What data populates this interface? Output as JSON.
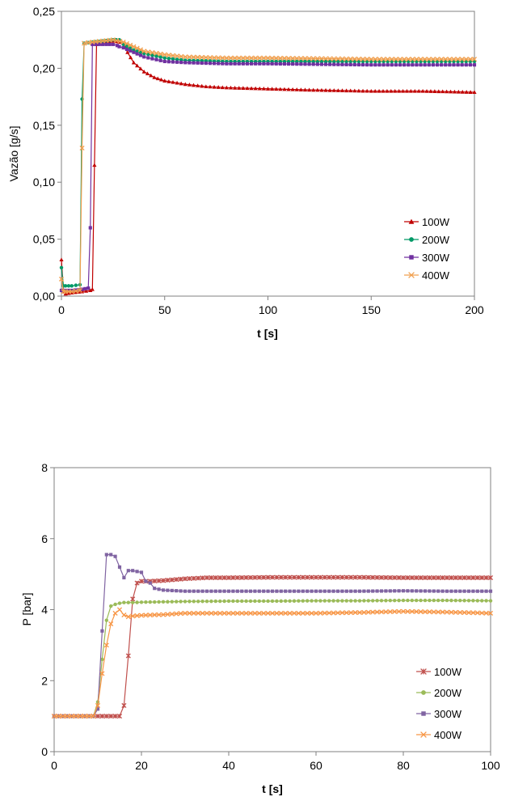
{
  "chart_data": [
    {
      "type": "scatter",
      "xlabel": "t [s]",
      "ylabel": "Vazão [g/s]",
      "xlim": [
        0,
        200
      ],
      "ylim": [
        0,
        0.25
      ],
      "xticks": [
        "0",
        "50",
        "100",
        "150",
        "200"
      ],
      "yticks": [
        "0,00",
        "0,05",
        "0,10",
        "0,15",
        "0,20",
        "0,25"
      ],
      "grid": false,
      "legend_position": "bottom-right",
      "series": [
        {
          "name": "100W",
          "color": "#c00000",
          "marker": "triangle",
          "x": [
            0,
            1,
            2,
            5,
            10,
            14,
            15,
            16,
            17,
            20,
            25,
            28,
            30,
            32,
            35,
            40,
            45,
            50,
            60,
            70,
            80,
            100,
            120,
            150,
            175,
            200
          ],
          "y": [
            0.032,
            0.004,
            0.002,
            0.003,
            0.004,
            0.005,
            0.006,
            0.115,
            0.221,
            0.223,
            0.224,
            0.223,
            0.222,
            0.214,
            0.205,
            0.197,
            0.192,
            0.189,
            0.186,
            0.184,
            0.183,
            0.182,
            0.181,
            0.18,
            0.18,
            0.179
          ]
        },
        {
          "name": "200W",
          "color": "#009966",
          "marker": "circle",
          "x": [
            0,
            1,
            2,
            5,
            9,
            10,
            11,
            15,
            20,
            25,
            28,
            30,
            35,
            40,
            50,
            60,
            80,
            100,
            150,
            200
          ],
          "y": [
            0.025,
            0.009,
            0.009,
            0.009,
            0.01,
            0.173,
            0.222,
            0.223,
            0.224,
            0.225,
            0.225,
            0.221,
            0.216,
            0.213,
            0.209,
            0.207,
            0.206,
            0.206,
            0.206,
            0.206
          ]
        },
        {
          "name": "300W",
          "color": "#7030a0",
          "marker": "square",
          "x": [
            0,
            1,
            2,
            5,
            10,
            13,
            14,
            15,
            20,
            25,
            27,
            28,
            30,
            35,
            40,
            50,
            60,
            80,
            100,
            150,
            200
          ],
          "y": [
            0.005,
            0.005,
            0.005,
            0.005,
            0.006,
            0.007,
            0.06,
            0.221,
            0.221,
            0.221,
            0.22,
            0.219,
            0.218,
            0.214,
            0.21,
            0.206,
            0.205,
            0.204,
            0.204,
            0.203,
            0.203
          ]
        },
        {
          "name": "400W",
          "color": "#f0a050",
          "marker": "cross",
          "x": [
            0,
            1,
            2,
            5,
            9,
            10,
            11,
            15,
            20,
            25,
            30,
            35,
            40,
            50,
            60,
            80,
            100,
            150,
            200
          ],
          "y": [
            0.015,
            0.004,
            0.004,
            0.004,
            0.005,
            0.13,
            0.222,
            0.223,
            0.224,
            0.225,
            0.223,
            0.219,
            0.215,
            0.212,
            0.21,
            0.209,
            0.209,
            0.208,
            0.208
          ]
        }
      ]
    },
    {
      "type": "line",
      "xlabel": "t [s]",
      "ylabel": "P [bar]",
      "xlim": [
        0,
        100
      ],
      "ylim": [
        0,
        8
      ],
      "xticks": [
        "0",
        "20",
        "40",
        "60",
        "80",
        "100"
      ],
      "yticks": [
        "0",
        "2",
        "4",
        "6",
        "8"
      ],
      "grid": false,
      "legend_position": "bottom-right",
      "series": [
        {
          "name": "100W",
          "color": "#c0504d",
          "marker": "star",
          "x": [
            0,
            5,
            10,
            14,
            15,
            16,
            17,
            18,
            19,
            20,
            22,
            25,
            30,
            35,
            40,
            50,
            60,
            70,
            80,
            90,
            100
          ],
          "y": [
            1.0,
            1.0,
            1.0,
            1.0,
            1.0,
            1.3,
            2.7,
            4.3,
            4.75,
            4.8,
            4.8,
            4.82,
            4.87,
            4.9,
            4.9,
            4.91,
            4.91,
            4.91,
            4.9,
            4.9,
            4.9
          ]
        },
        {
          "name": "200W",
          "color": "#9bbb59",
          "marker": "circle",
          "x": [
            0,
            5,
            9,
            10,
            11,
            12,
            13,
            14,
            15,
            16,
            18,
            20,
            25,
            30,
            40,
            50,
            60,
            70,
            80,
            90,
            100
          ],
          "y": [
            1.0,
            1.0,
            1.0,
            1.4,
            2.6,
            3.7,
            4.1,
            4.15,
            4.18,
            4.2,
            4.2,
            4.21,
            4.22,
            4.23,
            4.24,
            4.24,
            4.25,
            4.25,
            4.26,
            4.26,
            4.25
          ]
        },
        {
          "name": "300W",
          "color": "#8064a2",
          "marker": "square",
          "x": [
            0,
            5,
            9,
            10,
            11,
            12,
            13,
            14,
            15,
            16,
            17,
            18,
            20,
            21,
            22,
            23,
            25,
            30,
            40,
            50,
            60,
            70,
            80,
            90,
            100
          ],
          "y": [
            1.0,
            1.0,
            1.0,
            1.2,
            3.4,
            5.55,
            5.55,
            5.5,
            5.2,
            4.9,
            5.1,
            5.1,
            5.05,
            4.8,
            4.75,
            4.6,
            4.55,
            4.52,
            4.52,
            4.52,
            4.52,
            4.52,
            4.53,
            4.52,
            4.52
          ]
        },
        {
          "name": "400W",
          "color": "#f79646",
          "marker": "cross",
          "x": [
            0,
            5,
            9,
            10,
            11,
            12,
            13,
            14,
            15,
            16,
            17,
            18,
            20,
            25,
            30,
            40,
            50,
            60,
            70,
            80,
            90,
            100
          ],
          "y": [
            1.0,
            1.0,
            1.0,
            1.3,
            2.2,
            3.0,
            3.6,
            3.9,
            4.0,
            3.85,
            3.8,
            3.82,
            3.84,
            3.86,
            3.9,
            3.9,
            3.9,
            3.9,
            3.92,
            3.95,
            3.93,
            3.9
          ]
        }
      ]
    }
  ]
}
